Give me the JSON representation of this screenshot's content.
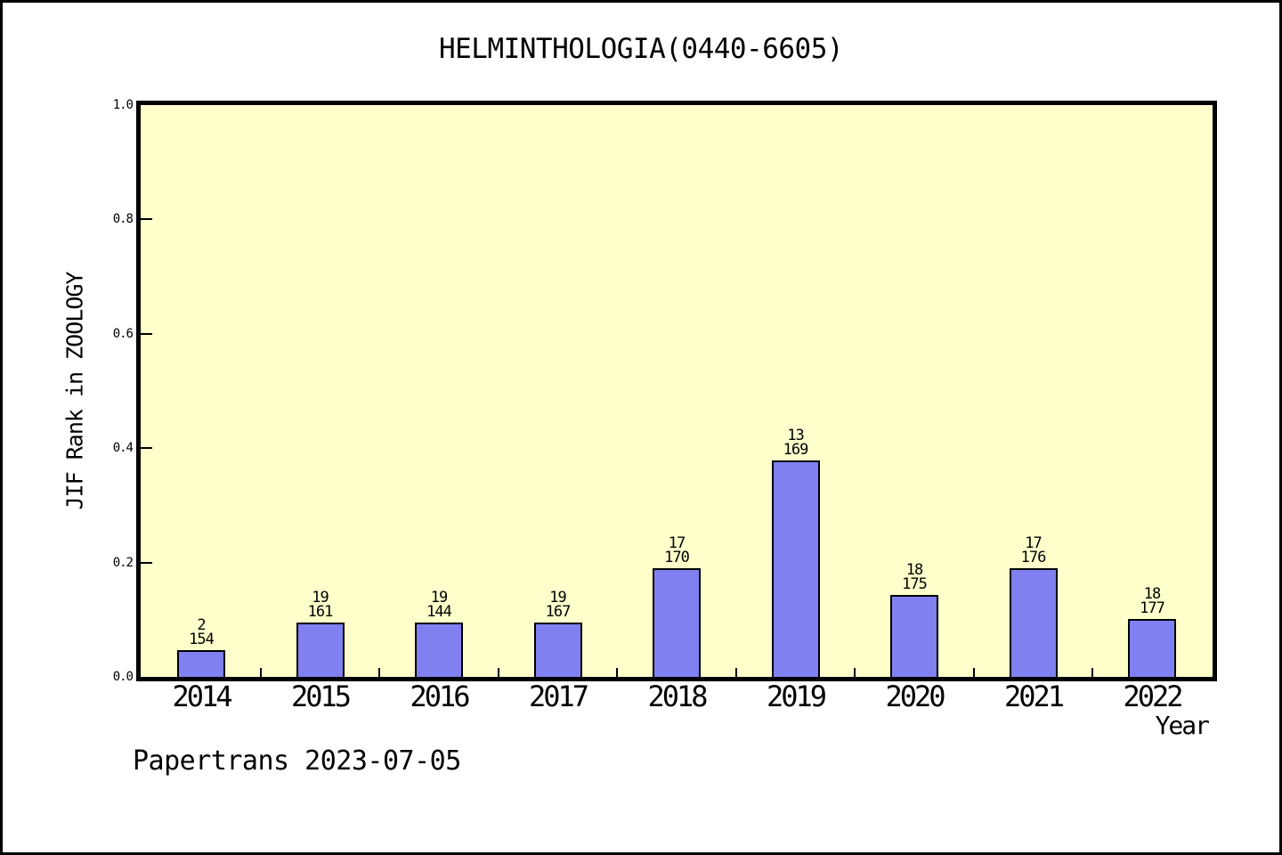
{
  "page": {
    "footer": "Papertrans 2023-07-05"
  },
  "chart_data": {
    "type": "bar",
    "title": "HELMINTHOLOGIA(0440-6605)",
    "xlabel": "Year",
    "ylabel": "JIF Rank in ZOOLOGY",
    "ylim": [
      0.0,
      1.0
    ],
    "grid": false,
    "legend": "none",
    "plot_background": "#FFFFCC",
    "bar_color": "#8080F0",
    "bar_border_color": "#000000",
    "yticks": [
      {
        "value": 0.0,
        "label": "0.0"
      },
      {
        "value": 0.2,
        "label": "0.2"
      },
      {
        "value": 0.4,
        "label": "0.4"
      },
      {
        "value": 0.6,
        "label": "0.6"
      },
      {
        "value": 0.8,
        "label": "0.8"
      },
      {
        "value": 1.0,
        "label": "1.0"
      }
    ],
    "categories": [
      "2014",
      "2015",
      "2016",
      "2017",
      "2018",
      "2019",
      "2020",
      "2021",
      "2022"
    ],
    "bars": [
      {
        "year": "2014",
        "rank": "2",
        "total": "154",
        "bar_height_fraction": 0.047
      },
      {
        "year": "2015",
        "rank": "19",
        "total": "161",
        "bar_height_fraction": 0.095
      },
      {
        "year": "2016",
        "rank": "19",
        "total": "144",
        "bar_height_fraction": 0.095
      },
      {
        "year": "2017",
        "rank": "19",
        "total": "167",
        "bar_height_fraction": 0.095
      },
      {
        "year": "2018",
        "rank": "17",
        "total": "170",
        "bar_height_fraction": 0.19
      },
      {
        "year": "2019",
        "rank": "13",
        "total": "169",
        "bar_height_fraction": 0.379
      },
      {
        "year": "2020",
        "rank": "18",
        "total": "175",
        "bar_height_fraction": 0.143
      },
      {
        "year": "2021",
        "rank": "17",
        "total": "176",
        "bar_height_fraction": 0.19
      },
      {
        "year": "2022",
        "rank": "18",
        "total": "177",
        "bar_height_fraction": 0.101
      }
    ]
  }
}
